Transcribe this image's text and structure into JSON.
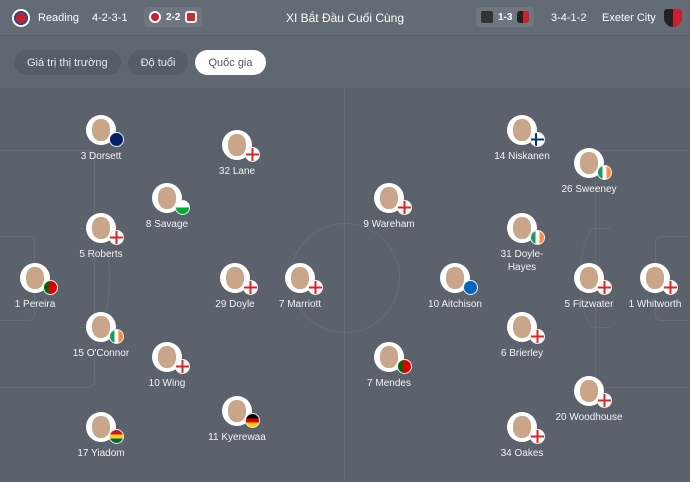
{
  "header": {
    "title": "XI Bắt Đầu Cuối Cùng",
    "home": {
      "name": "Reading",
      "formation": "4-2-3-1",
      "last_score": "2-2",
      "color": "#c8202f"
    },
    "away": {
      "name": "Exeter City",
      "formation": "3-4-1-2",
      "last_score": "1-3",
      "color": "#c8202f"
    }
  },
  "tabs": [
    {
      "label": "Giá trị thị trường",
      "active": false
    },
    {
      "label": "Độ tuổi",
      "active": false
    },
    {
      "label": "Quốc gia",
      "active": true
    }
  ],
  "home_players": [
    {
      "label": "3 Dorsett",
      "flag": "australia"
    },
    {
      "label": "32 Lane",
      "flag": "england"
    },
    {
      "label": "8 Savage",
      "flag": "wales"
    },
    {
      "label": "5 Roberts",
      "flag": "england"
    },
    {
      "label": "1 Pereira",
      "flag": "portugal"
    },
    {
      "label": "29 Doyle",
      "flag": "england"
    },
    {
      "label": "7 Marriott",
      "flag": "england"
    },
    {
      "label": "15 O'Connor",
      "flag": "ireland"
    },
    {
      "label": "10 Wing",
      "flag": "england"
    },
    {
      "label": "17 Yiadom",
      "flag": "ghana"
    },
    {
      "label": "11 Kyerewaa",
      "flag": "germany"
    }
  ],
  "away_players": [
    {
      "label": "14 Niskanen",
      "flag": "finland"
    },
    {
      "label": "26 Sweeney",
      "flag": "ireland"
    },
    {
      "label": "9 Wareham",
      "flag": "england"
    },
    {
      "label": "31 Doyle-Hayes",
      "flag": "ireland"
    },
    {
      "label": "10 Aitchison",
      "flag": "scotland"
    },
    {
      "label": "5 Fitzwater",
      "flag": "england"
    },
    {
      "label": "1 Whitworth",
      "flag": "england"
    },
    {
      "label": "6 Brierley",
      "flag": "england"
    },
    {
      "label": "7 Mendes",
      "flag": "portugal"
    },
    {
      "label": "20 Woodhouse",
      "flag": "england"
    },
    {
      "label": "34 Oakes",
      "flag": "england"
    }
  ]
}
